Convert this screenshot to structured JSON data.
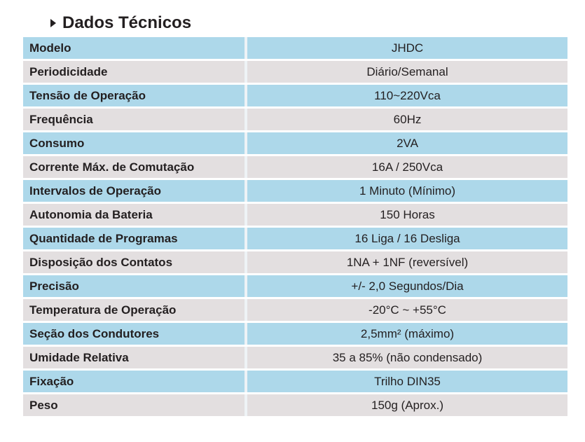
{
  "header": {
    "title": "Dados Técnicos",
    "bullet_icon": "triangle-right-icon"
  },
  "colors": {
    "row_blue": "#add8ea",
    "row_grey": "#e3dfe0",
    "text": "#231f20",
    "divider": "#eef3f6"
  },
  "specs": {
    "rows": [
      {
        "label": "Modelo",
        "value": "JHDC"
      },
      {
        "label": "Periodicidade",
        "value": "Diário/Semanal"
      },
      {
        "label": "Tensão de Operação",
        "value": "110~220Vca"
      },
      {
        "label": "Frequência",
        "value": "60Hz"
      },
      {
        "label": "Consumo",
        "value": "2VA"
      },
      {
        "label": "Corrente Máx. de Comutação",
        "value": "16A / 250Vca"
      },
      {
        "label": "Intervalos de Operação",
        "value": "1 Minuto (Mínimo)"
      },
      {
        "label": "Autonomia da Bateria",
        "value": "150 Horas"
      },
      {
        "label": "Quantidade de Programas",
        "value": "16 Liga / 16 Desliga"
      },
      {
        "label": "Disposição dos Contatos",
        "value": "1NA + 1NF (reversível)"
      },
      {
        "label": "Precisão",
        "value": "+/- 2,0 Segundos/Dia"
      },
      {
        "label": "Temperatura de Operação",
        "value": "-20°C ~ +55°C"
      },
      {
        "label": "Seção dos Condutores",
        "value": "2,5mm² (máximo)"
      },
      {
        "label": "Umidade Relativa",
        "value": "35 a 85% (não condensado)"
      },
      {
        "label": "Fixação",
        "value": "Trilho DIN35"
      },
      {
        "label": "Peso",
        "value": "150g (Aprox.)"
      }
    ]
  }
}
